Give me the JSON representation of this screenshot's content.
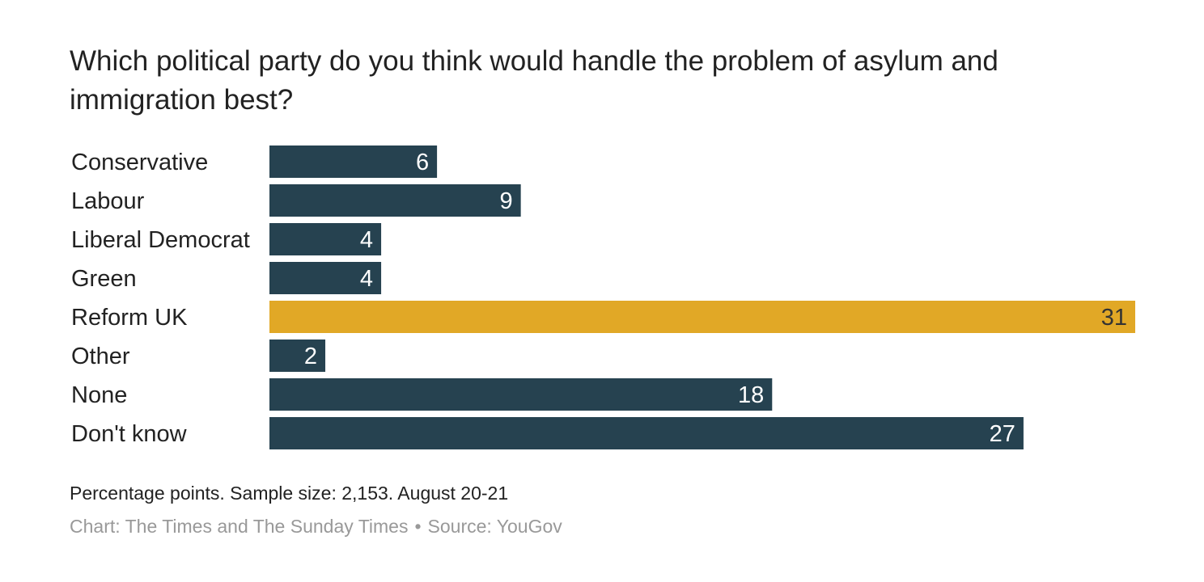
{
  "chart_data": {
    "type": "bar",
    "orientation": "horizontal",
    "title": "Which political party do you think would handle the problem of asylum and immigration best?",
    "categories": [
      "Conservative",
      "Labour",
      "Liberal Democrat",
      "Green",
      "Reform UK",
      "Other",
      "None",
      "Don't know"
    ],
    "values": [
      6,
      9,
      4,
      4,
      31,
      2,
      18,
      27
    ],
    "xlim": [
      0,
      31
    ],
    "grid": false,
    "legend": "none",
    "colors": {
      "default": "#264250",
      "highlight": "#E1A826",
      "label_on_default": "#ffffff",
      "label_on_highlight": "#333333"
    },
    "highlight_category": "Reform UK"
  },
  "footer": {
    "note": "Percentage points. Sample size: 2,153. August 20-21",
    "chart_credit": "Chart: The Times and The Sunday Times",
    "separator": "•",
    "source": "Source: YouGov"
  }
}
